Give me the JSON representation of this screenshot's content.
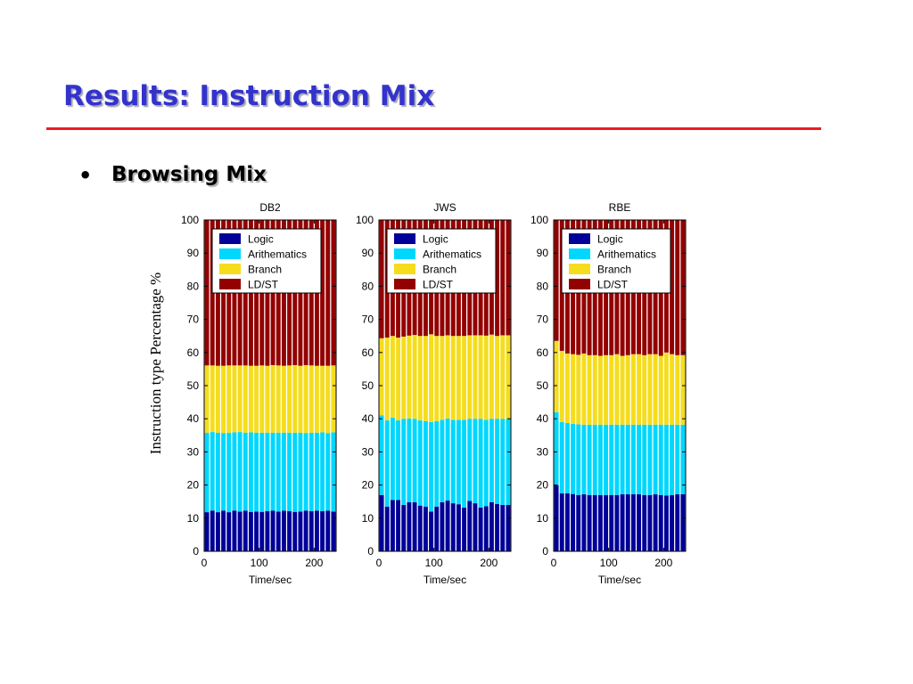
{
  "slide": {
    "title": "Results: Instruction Mix",
    "bullet": "Browsing Mix",
    "ylabel": "Instruction type Percentage %"
  },
  "colors": {
    "title": "#3333cc",
    "rule": "#ee1c24",
    "Logic": "#000099",
    "Arithematics": "#00d7ff",
    "Branch": "#f5dd1e",
    "LD/ST": "#930000"
  },
  "chart_data": [
    {
      "type": "bar",
      "stacked": true,
      "title": "DB2",
      "xlabel": "Time/sec",
      "ylabel": "Instruction type Percentage %",
      "xlim": [
        0,
        240
      ],
      "ylim": [
        0,
        100
      ],
      "xticks": [
        0,
        100,
        200
      ],
      "yticks": [
        0,
        10,
        20,
        30,
        40,
        50,
        60,
        70,
        80,
        90,
        100
      ],
      "legend": [
        "Logic",
        "Arithematics",
        "Branch",
        "LD/ST"
      ],
      "legend_position": "top-left",
      "x": [
        5,
        15,
        25,
        35,
        45,
        55,
        65,
        75,
        85,
        95,
        105,
        115,
        125,
        135,
        145,
        155,
        165,
        175,
        185,
        195,
        205,
        215,
        225,
        235
      ],
      "series": [
        {
          "name": "Logic",
          "values": [
            11.8,
            12.3,
            11.8,
            12.3,
            11.8,
            12.3,
            12.0,
            12.3,
            11.9,
            12.0,
            11.9,
            12.1,
            12.3,
            12.0,
            12.3,
            12.1,
            11.9,
            12.0,
            12.3,
            12.1,
            12.3,
            12.1,
            12.3,
            12.0
          ]
        },
        {
          "name": "Arithematics",
          "values": [
            24.0,
            23.7,
            24.0,
            23.4,
            24.0,
            23.6,
            24.0,
            23.5,
            24.0,
            23.8,
            23.9,
            23.7,
            23.5,
            23.8,
            23.5,
            23.7,
            23.9,
            23.8,
            23.4,
            23.7,
            23.5,
            23.8,
            23.4,
            23.9
          ]
        },
        {
          "name": "Branch",
          "values": [
            20.3,
            20.1,
            20.2,
            20.3,
            20.3,
            20.2,
            20.1,
            20.3,
            20.1,
            20.2,
            20.3,
            20.2,
            20.4,
            20.3,
            20.2,
            20.3,
            20.4,
            20.2,
            20.5,
            20.3,
            20.2,
            20.1,
            20.3,
            20.2
          ]
        },
        {
          "name": "LD/ST",
          "values": [
            43.9,
            43.9,
            44.0,
            44.0,
            43.9,
            43.9,
            43.9,
            43.9,
            44.0,
            44.0,
            43.9,
            44.0,
            43.8,
            43.9,
            44.0,
            43.9,
            43.8,
            44.0,
            43.8,
            43.9,
            44.0,
            44.0,
            44.0,
            43.9
          ]
        }
      ]
    },
    {
      "type": "bar",
      "stacked": true,
      "title": "JWS",
      "xlabel": "Time/sec",
      "ylabel": "Instruction type Percentage %",
      "xlim": [
        0,
        240
      ],
      "ylim": [
        0,
        100
      ],
      "xticks": [
        0,
        100,
        200
      ],
      "yticks": [
        0,
        10,
        20,
        30,
        40,
        50,
        60,
        70,
        80,
        90,
        100
      ],
      "legend": [
        "Logic",
        "Arithematics",
        "Branch",
        "LD/ST"
      ],
      "legend_position": "top-left",
      "x": [
        5,
        15,
        25,
        35,
        45,
        55,
        65,
        75,
        85,
        95,
        105,
        115,
        125,
        135,
        145,
        155,
        165,
        175,
        185,
        195,
        205,
        215,
        225,
        235
      ],
      "series": [
        {
          "name": "Logic",
          "values": [
            17.0,
            13.5,
            15.5,
            15.5,
            14.0,
            14.8,
            14.8,
            13.8,
            13.5,
            12.0,
            13.5,
            14.8,
            15.3,
            14.5,
            14.2,
            13.2,
            15.2,
            14.5,
            13.2,
            13.6,
            14.8,
            14.3,
            14.0,
            14.0
          ]
        },
        {
          "name": "Arithematics",
          "values": [
            24.0,
            26.0,
            24.8,
            24.0,
            26.0,
            25.3,
            25.2,
            25.7,
            25.8,
            27.0,
            25.8,
            24.9,
            24.8,
            25.2,
            25.5,
            26.5,
            24.8,
            25.5,
            26.8,
            26.1,
            25.2,
            25.7,
            26.0,
            26.0
          ]
        },
        {
          "name": "Branch",
          "values": [
            23.3,
            25.0,
            24.7,
            25.0,
            24.8,
            25.0,
            25.3,
            25.5,
            25.7,
            26.5,
            25.7,
            25.3,
            25.1,
            25.3,
            25.3,
            25.3,
            25.2,
            25.2,
            25.2,
            25.4,
            25.4,
            25.0,
            25.2,
            25.2
          ]
        },
        {
          "name": "LD/ST",
          "values": [
            35.7,
            35.5,
            35.0,
            35.5,
            35.2,
            34.9,
            34.7,
            35.0,
            35.0,
            34.5,
            35.0,
            35.0,
            34.8,
            35.0,
            35.0,
            35.0,
            34.8,
            34.8,
            34.8,
            34.9,
            34.6,
            35.0,
            34.8,
            34.8
          ]
        }
      ]
    },
    {
      "type": "bar",
      "stacked": true,
      "title": "RBE",
      "xlabel": "Time/sec",
      "ylabel": "Instruction type Percentage %",
      "xlim": [
        0,
        240
      ],
      "ylim": [
        0,
        100
      ],
      "xticks": [
        0,
        100,
        200
      ],
      "yticks": [
        0,
        10,
        20,
        30,
        40,
        50,
        60,
        70,
        80,
        90,
        100
      ],
      "legend": [
        "Logic",
        "Arithematics",
        "Branch",
        "LD/ST"
      ],
      "legend_position": "top-left",
      "x": [
        5,
        15,
        25,
        35,
        45,
        55,
        65,
        75,
        85,
        95,
        105,
        115,
        125,
        135,
        145,
        155,
        165,
        175,
        185,
        195,
        205,
        215,
        225,
        235
      ],
      "series": [
        {
          "name": "Logic",
          "values": [
            20.0,
            17.5,
            17.5,
            17.3,
            17.0,
            17.2,
            17.0,
            17.0,
            17.0,
            17.0,
            17.0,
            17.0,
            17.2,
            17.2,
            17.2,
            17.2,
            17.0,
            17.0,
            17.2,
            17.0,
            16.8,
            17.0,
            17.2,
            17.2
          ]
        },
        {
          "name": "Arithematics",
          "values": [
            22.0,
            21.5,
            21.2,
            21.2,
            21.3,
            21.0,
            21.2,
            21.2,
            21.2,
            21.2,
            21.2,
            21.2,
            21.0,
            21.0,
            21.0,
            21.0,
            21.2,
            21.2,
            21.0,
            21.2,
            21.4,
            21.2,
            21.0,
            21.0
          ]
        },
        {
          "name": "Branch",
          "values": [
            21.5,
            21.5,
            21.0,
            21.0,
            21.0,
            21.5,
            21.0,
            21.0,
            20.8,
            21.0,
            21.0,
            21.3,
            20.8,
            21.0,
            21.3,
            21.3,
            21.0,
            21.3,
            21.3,
            20.8,
            21.8,
            21.3,
            21.0,
            21.0
          ]
        },
        {
          "name": "LD/ST",
          "values": [
            36.5,
            39.5,
            40.3,
            40.5,
            40.7,
            40.3,
            40.8,
            40.8,
            41.0,
            40.8,
            40.8,
            40.5,
            41.0,
            40.8,
            40.5,
            40.5,
            40.8,
            40.5,
            40.5,
            41.0,
            40.0,
            40.5,
            40.8,
            40.8
          ]
        }
      ]
    }
  ]
}
